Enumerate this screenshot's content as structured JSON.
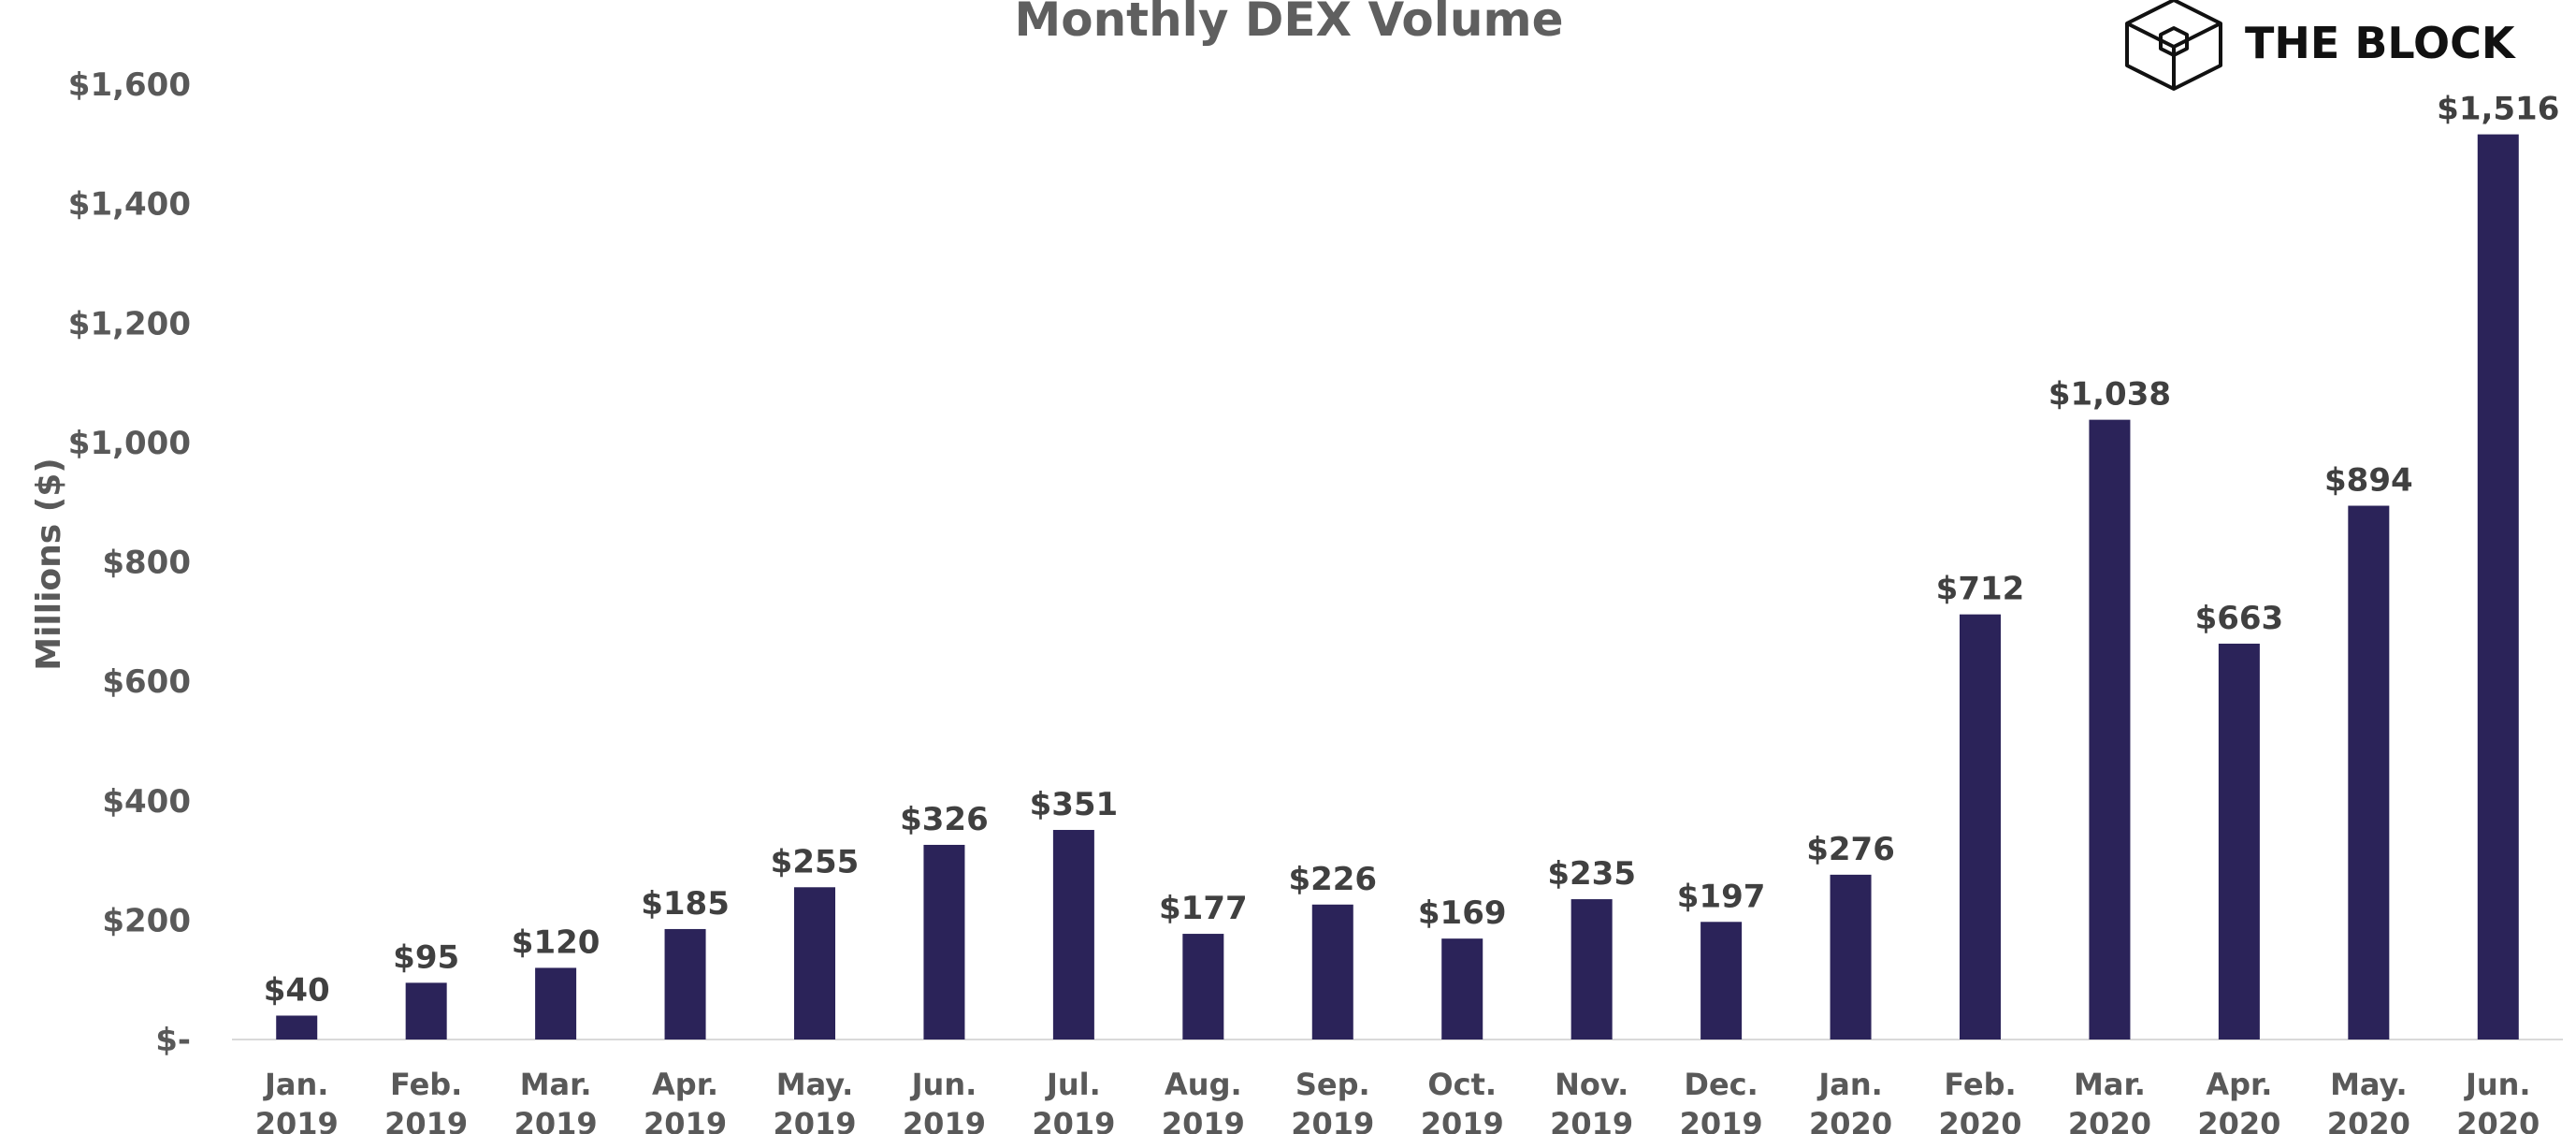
{
  "brand": {
    "name": "THE BLOCK",
    "logo_icon": "cube-logo-icon"
  },
  "chart_data": {
    "type": "bar",
    "title": "Monthly DEX Volume",
    "xlabel": "",
    "ylabel": "Millions ($)",
    "ylim": [
      0,
      1600
    ],
    "yticks": [
      0,
      200,
      400,
      600,
      800,
      1000,
      1200,
      1400,
      1600
    ],
    "ytick_labels": [
      "$-",
      "$200",
      "$400",
      "$600",
      "$800",
      "$1,000",
      "$1,200",
      "$1,400",
      "$1,600"
    ],
    "grid": false,
    "bar_color": "#2b2359",
    "categories": [
      [
        "Jan.",
        "2019"
      ],
      [
        "Feb.",
        "2019"
      ],
      [
        "Mar.",
        "2019"
      ],
      [
        "Apr.",
        "2019"
      ],
      [
        "May.",
        "2019"
      ],
      [
        "Jun.",
        "2019"
      ],
      [
        "Jul.",
        "2019"
      ],
      [
        "Aug.",
        "2019"
      ],
      [
        "Sep.",
        "2019"
      ],
      [
        "Oct.",
        "2019"
      ],
      [
        "Nov.",
        "2019"
      ],
      [
        "Dec.",
        "2019"
      ],
      [
        "Jan.",
        "2020"
      ],
      [
        "Feb.",
        "2020"
      ],
      [
        "Mar.",
        "2020"
      ],
      [
        "Apr.",
        "2020"
      ],
      [
        "May.",
        "2020"
      ],
      [
        "Jun.",
        "2020"
      ]
    ],
    "values": [
      40,
      95,
      120,
      185,
      255,
      326,
      351,
      177,
      226,
      169,
      235,
      197,
      276,
      712,
      1038,
      663,
      894,
      1516
    ],
    "data_labels": [
      "$40",
      "$95",
      "$120",
      "$185",
      "$255",
      "$326",
      "$351",
      "$177",
      "$226",
      "$169",
      "$235",
      "$197",
      "$276",
      "$712",
      "$1,038",
      "$663",
      "$894",
      "$1,516"
    ]
  }
}
